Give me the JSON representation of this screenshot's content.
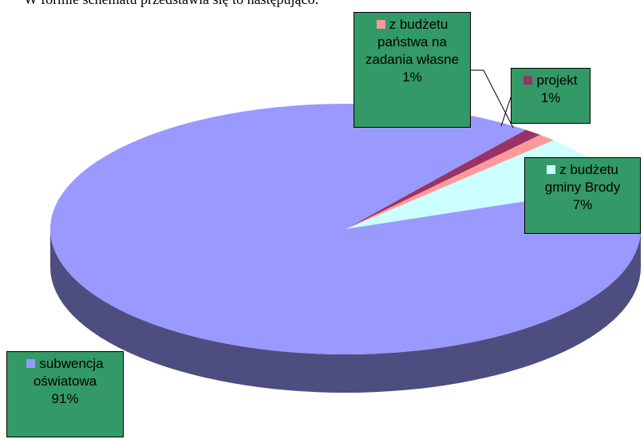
{
  "intro_text": "W formie schematu przedstawia się to następująco:",
  "chart_data": {
    "type": "pie3d",
    "categories": [
      "z budżetu gminy Brody",
      "z budżetu państwa na zadania własne",
      "projekt",
      "subwencja oświatowa"
    ],
    "values": [
      7,
      1,
      1,
      91
    ],
    "value_labels": [
      "7%",
      "1%",
      "1%",
      "91%"
    ],
    "colors": [
      "#ccffff",
      "#ff9999",
      "#993366",
      "#9999ff"
    ]
  }
}
